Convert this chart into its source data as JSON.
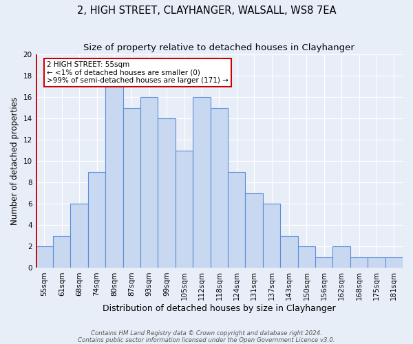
{
  "title": "2, HIGH STREET, CLAYHANGER, WALSALL, WS8 7EA",
  "subtitle": "Size of property relative to detached houses in Clayhanger",
  "xlabel": "Distribution of detached houses by size in Clayhanger",
  "ylabel": "Number of detached properties",
  "bar_labels": [
    "55sqm",
    "61sqm",
    "68sqm",
    "74sqm",
    "80sqm",
    "87sqm",
    "93sqm",
    "99sqm",
    "105sqm",
    "112sqm",
    "118sqm",
    "124sqm",
    "131sqm",
    "137sqm",
    "143sqm",
    "150sqm",
    "156sqm",
    "162sqm",
    "168sqm",
    "175sqm",
    "181sqm"
  ],
  "bar_values": [
    2,
    3,
    6,
    9,
    17,
    15,
    16,
    14,
    11,
    16,
    15,
    9,
    7,
    6,
    3,
    2,
    1,
    2,
    1,
    1,
    1
  ],
  "bar_color": "#c8d8f0",
  "bar_edge_color": "#5b8dd9",
  "annotation_title": "2 HIGH STREET: 55sqm",
  "annotation_line1": "← <1% of detached houses are smaller (0)",
  "annotation_line2": ">99% of semi-detached houses are larger (171) →",
  "annotation_box_color": "#ffffff",
  "annotation_box_edge": "#cc0000",
  "marker_line_color": "#cc0000",
  "ylim": [
    0,
    20
  ],
  "yticks": [
    0,
    2,
    4,
    6,
    8,
    10,
    12,
    14,
    16,
    18,
    20
  ],
  "bg_color": "#e8eef8",
  "footer1": "Contains HM Land Registry data © Crown copyright and database right 2024.",
  "footer2": "Contains public sector information licensed under the Open Government Licence v3.0.",
  "title_fontsize": 10.5,
  "subtitle_fontsize": 9.5,
  "xlabel_fontsize": 9,
  "ylabel_fontsize": 8.5,
  "tick_fontsize": 7.5,
  "footer_fontsize": 6.2
}
